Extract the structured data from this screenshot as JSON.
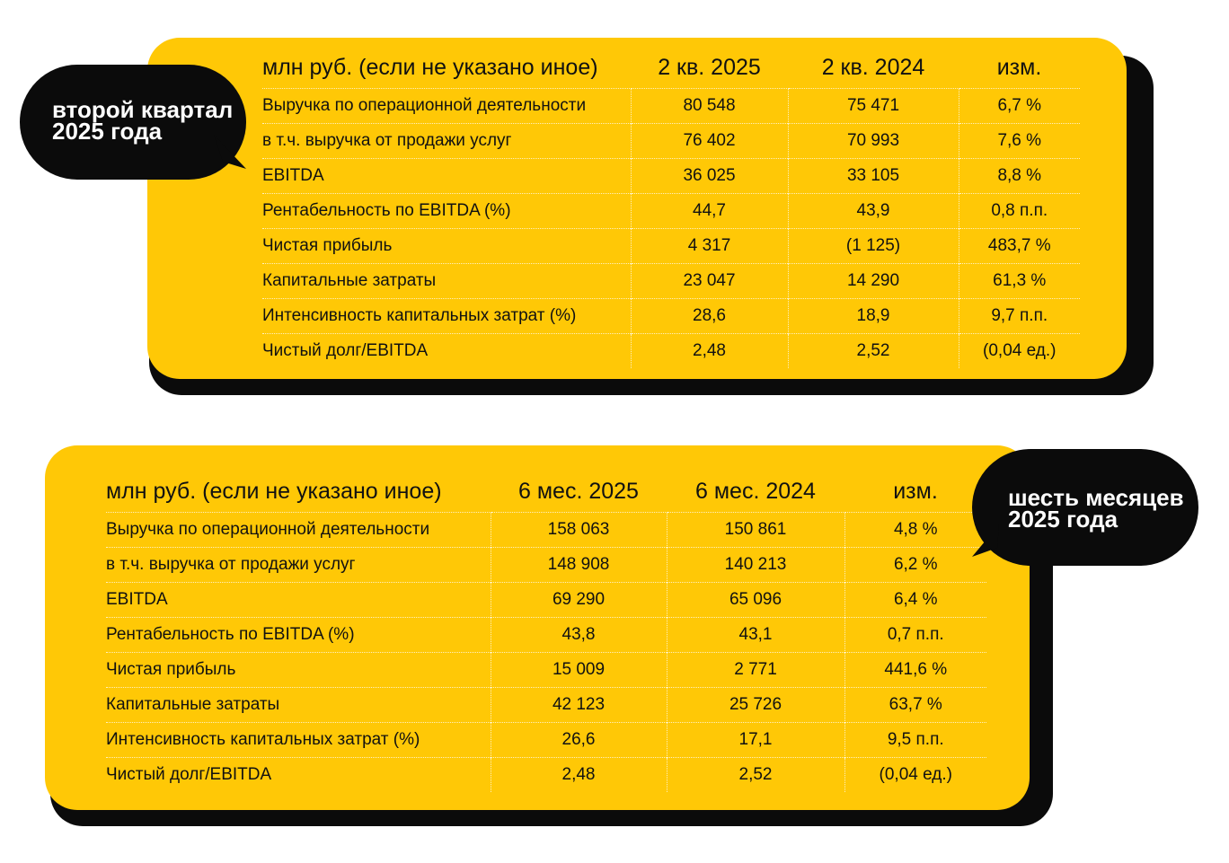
{
  "quarter": {
    "badge": [
      "второй квартал",
      "2025 года"
    ],
    "headers": [
      "млн руб. (если не указано иное)",
      "2 кв. 2025",
      "2 кв. 2024",
      "изм."
    ],
    "rows": [
      [
        "Выручка по операционной деятельности",
        "80 548",
        "75 471",
        "6,7 %"
      ],
      [
        "в т.ч. выручка от продажи услуг",
        "76 402",
        "70 993",
        "7,6 %"
      ],
      [
        "EBITDA",
        "36 025",
        "33 105",
        "8,8 %"
      ],
      [
        "Рентабельность по EBITDA (%)",
        "44,7",
        "43,9",
        "0,8 п.п."
      ],
      [
        "Чистая прибыль",
        "4 317",
        "(1 125)",
        "483,7 %"
      ],
      [
        "Капитальные затраты",
        "23 047",
        "14 290",
        "61,3 %"
      ],
      [
        "Интенсивность капитальных затрат (%)",
        "28,6",
        "18,9",
        "9,7 п.п."
      ],
      [
        "Чистый долг/EBITDA",
        "2,48",
        "2,52",
        "(0,04 ед.)"
      ]
    ]
  },
  "half_year": {
    "badge": [
      "шесть месяцев",
      "2025 года"
    ],
    "headers": [
      "млн руб. (если не указано иное)",
      "6 мес. 2025",
      "6 мес. 2024",
      "изм."
    ],
    "rows": [
      [
        "Выручка по операционной деятельности",
        "158 063",
        "150 861",
        "4,8 %"
      ],
      [
        "в т.ч. выручка от продажи услуг",
        "148 908",
        "140 213",
        "6,2 %"
      ],
      [
        "EBITDA",
        "69 290",
        "65 096",
        "6,4 %"
      ],
      [
        "Рентабельность по EBITDA (%)",
        "43,8",
        "43,1",
        "0,7 п.п."
      ],
      [
        "Чистая прибыль",
        "15 009",
        "2 771",
        "441,6 %"
      ],
      [
        "Капитальные затраты",
        "42 123",
        "25 726",
        "63,7 %"
      ],
      [
        "Интенсивность капитальных затрат (%)",
        "26,6",
        "17,1",
        "9,5 п.п."
      ],
      [
        "Чистый долг/EBITDA",
        "2,48",
        "2,52",
        "(0,04 ед.)"
      ]
    ]
  },
  "colors": {
    "card": "#FFC806",
    "shadow": "#0b0b0b",
    "bubble": "#0b0b0b"
  }
}
